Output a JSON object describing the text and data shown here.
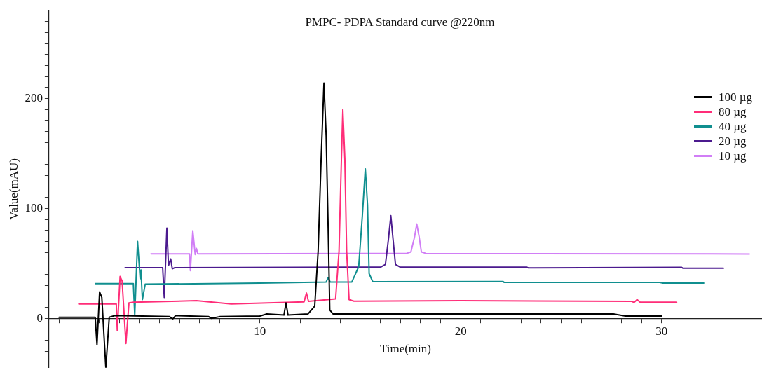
{
  "chart_data": {
    "type": "line",
    "title": "PMPC- PDPA Standard curve @220nm",
    "xlabel": "Time(min)",
    "ylabel": "Value(mAU)",
    "xlim": [
      -0.5,
      35
    ],
    "ylim": [
      -45,
      280
    ],
    "xticks": [
      {
        "value": 0,
        "label": null
      },
      {
        "value": 1,
        "label": null
      },
      {
        "value": 2,
        "label": null
      },
      {
        "value": 3,
        "label": null
      },
      {
        "value": 4,
        "label": null
      },
      {
        "value": 5,
        "label": null
      },
      {
        "value": 6,
        "label": null
      },
      {
        "value": 7,
        "label": null
      },
      {
        "value": 8,
        "label": null
      },
      {
        "value": 9,
        "label": null
      },
      10,
      {
        "value": 11,
        "label": null
      },
      {
        "value": 12,
        "label": null
      },
      {
        "value": 13,
        "label": null
      },
      {
        "value": 14,
        "label": null
      },
      {
        "value": 15,
        "label": null
      },
      {
        "value": 16,
        "label": null
      },
      {
        "value": 17,
        "label": null
      },
      {
        "value": 18,
        "label": null
      },
      {
        "value": 19,
        "label": null
      },
      20,
      {
        "value": 21,
        "label": null
      },
      {
        "value": 22,
        "label": null
      },
      {
        "value": 23,
        "label": null
      },
      {
        "value": 24,
        "label": null
      },
      {
        "value": 25,
        "label": null
      },
      {
        "value": 26,
        "label": null
      },
      {
        "value": 27,
        "label": null
      },
      {
        "value": 28,
        "label": null
      },
      {
        "value": 29,
        "label": null
      },
      30
    ],
    "yticks": [
      {
        "value": -40,
        "label": null
      },
      {
        "value": -30,
        "label": null
      },
      {
        "value": -20,
        "label": null
      },
      {
        "value": -10,
        "label": null
      },
      0,
      {
        "value": 10,
        "label": null
      },
      {
        "value": 20,
        "label": null
      },
      {
        "value": 30,
        "label": null
      },
      {
        "value": 40,
        "label": null
      },
      {
        "value": 50,
        "label": null
      },
      {
        "value": 60,
        "label": null
      },
      {
        "value": 70,
        "label": null
      },
      {
        "value": 80,
        "label": null
      },
      {
        "value": 90,
        "label": null
      },
      100,
      {
        "value": 110,
        "label": null
      },
      {
        "value": 120,
        "label": null
      },
      {
        "value": 130,
        "label": null
      },
      {
        "value": 140,
        "label": null
      },
      {
        "value": 150,
        "label": null
      },
      {
        "value": 160,
        "label": null
      },
      {
        "value": 170,
        "label": null
      },
      {
        "value": 180,
        "label": null
      },
      {
        "value": 190,
        "label": null
      },
      200,
      {
        "value": 210,
        "label": null
      },
      {
        "value": 220,
        "label": null
      },
      {
        "value": 230,
        "label": null
      },
      {
        "value": 240,
        "label": null
      },
      {
        "value": 250,
        "label": null
      },
      {
        "value": 260,
        "label": null
      },
      {
        "value": 270,
        "label": null
      },
      {
        "value": 280,
        "label": null
      }
    ],
    "grid": false,
    "legend": "right",
    "marker": "none",
    "line_style": "solid",
    "series": [
      {
        "name": "100 µg",
        "color": "#000000",
        "x": [
          0,
          1.8,
          1.89,
          2.02,
          2.13,
          2.33,
          2.5,
          2.79,
          5.5,
          5.67,
          5.8,
          7.45,
          7.58,
          8.0,
          10,
          10.35,
          11.2,
          11.3,
          11.4,
          12.4,
          12.73,
          12.9,
          13.05,
          13.19,
          13.3,
          13.4,
          13.48,
          13.64,
          16,
          20,
          24,
          27.6,
          28.2,
          30
        ],
        "values": [
          1,
          1,
          -24,
          24,
          19,
          -45,
          1,
          2.5,
          1.5,
          -0.5,
          2.5,
          1.5,
          0,
          1.5,
          2,
          4,
          3,
          14,
          3,
          4,
          11,
          61,
          145,
          214,
          166,
          82,
          7.5,
          4,
          4,
          4,
          4,
          4,
          2,
          2
        ]
      },
      {
        "name": "80 µg",
        "color": "#ff2d78",
        "x": [
          0.98,
          2.85,
          2.9,
          3.04,
          3.14,
          3.33,
          3.48,
          3.71,
          6.84,
          8.57,
          12.2,
          12.32,
          12.42,
          13.77,
          13.94,
          14.06,
          14.13,
          14.23,
          14.32,
          14.44,
          14.68,
          20,
          28.5,
          28.63,
          28.78,
          28.93,
          30.75
        ],
        "values": [
          13,
          13,
          -11,
          38,
          34,
          -23,
          14,
          14.6,
          16,
          13,
          15,
          23,
          15.5,
          17.7,
          61,
          145,
          190,
          145,
          61,
          17,
          15.6,
          16,
          15.5,
          14.4,
          17,
          14.7,
          14.7
        ]
      },
      {
        "name": "40 µg",
        "color": "#108f8f",
        "x": [
          1.81,
          3.7,
          3.77,
          3.91,
          4.04,
          4.08,
          4.15,
          4.29,
          10,
          13.3,
          13.4,
          13.5,
          14.58,
          14.92,
          15.1,
          15.25,
          15.36,
          15.44,
          15.62,
          22.1,
          22.17,
          29.9,
          30.07,
          32.1
        ],
        "values": [
          31.5,
          31.5,
          3,
          70,
          36,
          44,
          17,
          31,
          32,
          33,
          37,
          33,
          33,
          47,
          93,
          136,
          103,
          40.6,
          33.3,
          33.5,
          32.6,
          32.7,
          32,
          32
        ]
      },
      {
        "name": "20 µg",
        "color": "#4b1a8e",
        "x": [
          3.29,
          5.16,
          5.24,
          5.37,
          5.45,
          5.56,
          5.64,
          5.75,
          16,
          16.25,
          16.4,
          16.52,
          16.63,
          16.75,
          17,
          23.3,
          23.37,
          31,
          31.07,
          33.08
        ],
        "values": [
          46,
          46,
          19,
          82,
          48,
          54,
          45,
          46,
          46.5,
          49,
          72,
          93.3,
          72,
          49,
          46.5,
          46.5,
          45.8,
          46.3,
          45.5,
          45.5
        ]
      },
      {
        "name": "10 µg",
        "color": "#d17ef6",
        "x": [
          4.58,
          6.5,
          6.54,
          6.66,
          6.78,
          6.84,
          6.91,
          17.3,
          17.52,
          17.7,
          17.81,
          17.93,
          18.04,
          18.27,
          34.37
        ],
        "values": [
          58.7,
          58.7,
          43.3,
          79.6,
          58,
          63.5,
          58.7,
          59,
          60.4,
          74,
          85.8,
          74,
          60.4,
          59,
          58.5
        ]
      }
    ]
  }
}
